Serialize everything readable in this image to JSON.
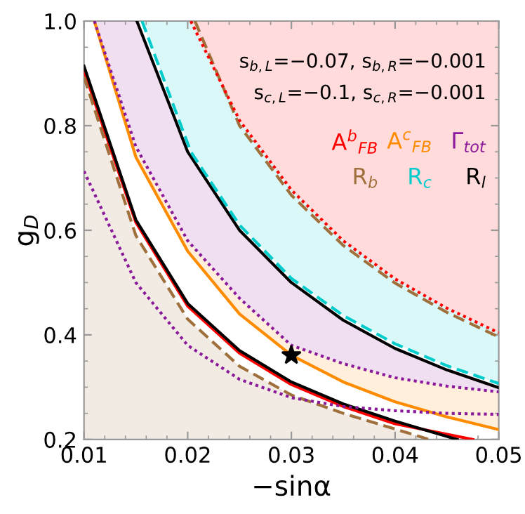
{
  "chart_data": {
    "type": "line",
    "xlabel": "−sinα",
    "ylabel": "g$_{D}$",
    "xlim": [
      0.01,
      0.05
    ],
    "ylim": [
      0.2,
      1.0
    ],
    "xticks": [
      0.01,
      0.02,
      0.03,
      0.04,
      0.05
    ],
    "yticks": [
      0.2,
      0.4,
      0.6,
      0.8,
      {
        "value": 1.0,
        "label": "1.0"
      }
    ],
    "legend": "top right",
    "annotations": [
      "s$_{b,L}$=−0.07, s$_{b,R}$=−0.001",
      "s$_{c,L}$=−0.1, s$_{c,R}$=−0.001"
    ],
    "series": [
      {
        "name": "A$^{b}$$_{FB}$",
        "color": "#ff0000",
        "line_style": "dotted",
        "x": [
          0.0203,
          0.025,
          0.03,
          0.035,
          0.04,
          0.045,
          0.05
        ],
        "values": [
          1.0,
          0.81,
          0.677,
          0.58,
          0.507,
          0.451,
          0.404
        ],
        "lower": [
          1.0,
          0.81,
          0.677,
          0.58,
          0.507,
          0.451,
          0.404
        ],
        "upper": [
          1.0,
          1.0,
          1.0,
          1.0,
          1.0,
          1.0,
          1.0
        ]
      },
      {
        "name": "A$^{c}$$_{FB}$",
        "color": "#ff8c00",
        "line_style": "solid",
        "x": [
          0.011,
          0.015,
          0.02,
          0.025,
          0.03,
          0.035,
          0.04,
          0.045,
          0.05
        ],
        "values": [
          1.0,
          0.74,
          0.56,
          0.44,
          0.361,
          0.31,
          0.272,
          0.243,
          0.219
        ],
        "lower": [
          1.0,
          0.74,
          0.56,
          0.44,
          0.361,
          0.31,
          0.272,
          0.243,
          0.219
        ],
        "upper": [
          1.0,
          0.76,
          0.58,
          0.47,
          0.38,
          0.345,
          0.318,
          0.302,
          0.291
        ]
      },
      {
        "name": "Γ$_{tot}$",
        "color": "#8b1a9b",
        "line_style": "dotted",
        "x": [
          0.011,
          0.015,
          0.02,
          0.025,
          0.03,
          0.035,
          0.04,
          0.045,
          0.05
        ],
        "values": [
          1.0,
          0.76,
          0.58,
          0.47,
          0.38,
          0.345,
          0.318,
          0.302,
          0.291
        ],
        "lower": [
          1.0,
          0.76,
          0.58,
          0.47,
          0.38,
          0.345,
          0.318,
          0.302,
          0.291
        ],
        "upper": [
          1.0,
          1.0,
          0.75,
          0.6,
          0.5,
          0.428,
          0.374,
          0.333,
          0.299
        ]
      },
      {
        "name": "R$_{b}$",
        "color": "#a0703c",
        "line_style": "dashed",
        "x": [
          0.0207,
          0.025,
          0.03,
          0.035,
          0.04,
          0.045,
          0.05
        ],
        "values": [
          1.0,
          0.8,
          0.667,
          0.571,
          0.499,
          0.443,
          0.396
        ]
      },
      {
        "name": "R$_{c}$",
        "color": "#00cccc",
        "line_style": "dashed",
        "x": [
          0.0156,
          0.0203,
          0.025,
          0.03,
          0.035,
          0.04,
          0.045,
          0.05
        ],
        "values": [
          1.0,
          0.75,
          0.61,
          0.508,
          0.437,
          0.383,
          0.341,
          0.307
        ],
        "lower": [
          1.0,
          0.75,
          0.61,
          0.508,
          0.437,
          0.383,
          0.341,
          0.307
        ],
        "upper": [
          1.0,
          1.0,
          0.81,
          0.677,
          0.58,
          0.507,
          0.451,
          0.404
        ]
      },
      {
        "name": "R$_{l}$",
        "color": "#000000",
        "line_style": "solid",
        "x": [
          0.0151,
          0.02,
          0.025,
          0.03,
          0.035,
          0.04,
          0.045,
          0.05
        ],
        "values": [
          1.0,
          0.75,
          0.6,
          0.5,
          0.428,
          0.374,
          0.333,
          0.299
        ]
      },
      {
        "color": "#a0703c",
        "line_style": "dashed",
        "x": [
          0.01,
          0.015,
          0.02,
          0.025,
          0.03,
          0.035,
          0.04,
          0.0433
        ],
        "values": [
          0.893,
          0.59,
          0.43,
          0.34,
          0.285,
          0.25,
          0.22,
          0.2
        ],
        "lower": [
          0.2,
          0.2,
          0.2,
          0.2,
          0.2,
          0.2,
          0.2,
          0.2
        ],
        "upper": [
          0.893,
          0.59,
          0.43,
          0.34,
          0.285,
          0.25,
          0.22,
          0.2
        ]
      },
      {
        "color": "#ff0000",
        "line_style": "solid",
        "x": [
          0.01,
          0.015,
          0.02,
          0.025,
          0.03,
          0.035,
          0.04,
          0.0475
        ],
        "values": [
          0.905,
          0.615,
          0.455,
          0.365,
          0.305,
          0.263,
          0.23,
          0.2
        ]
      },
      {
        "color": "#000000",
        "line_style": "solid",
        "x": [
          0.01,
          0.015,
          0.02,
          0.025,
          0.03,
          0.035,
          0.04,
          0.046
        ],
        "values": [
          0.914,
          0.62,
          0.46,
          0.37,
          0.31,
          0.268,
          0.235,
          0.2
        ]
      },
      {
        "color": "#8b1a9b",
        "line_style": "dotted",
        "x": [
          0.01,
          0.015,
          0.02,
          0.025,
          0.03,
          0.035,
          0.04,
          0.045,
          0.05
        ],
        "values": [
          0.713,
          0.5,
          0.38,
          0.315,
          0.28,
          0.263,
          0.255,
          0.25,
          0.248
        ]
      },
      {
        "type": "scatter",
        "color": "#000000",
        "marker": "star",
        "x": [
          0.03
        ],
        "values": [
          0.361
        ]
      }
    ]
  }
}
